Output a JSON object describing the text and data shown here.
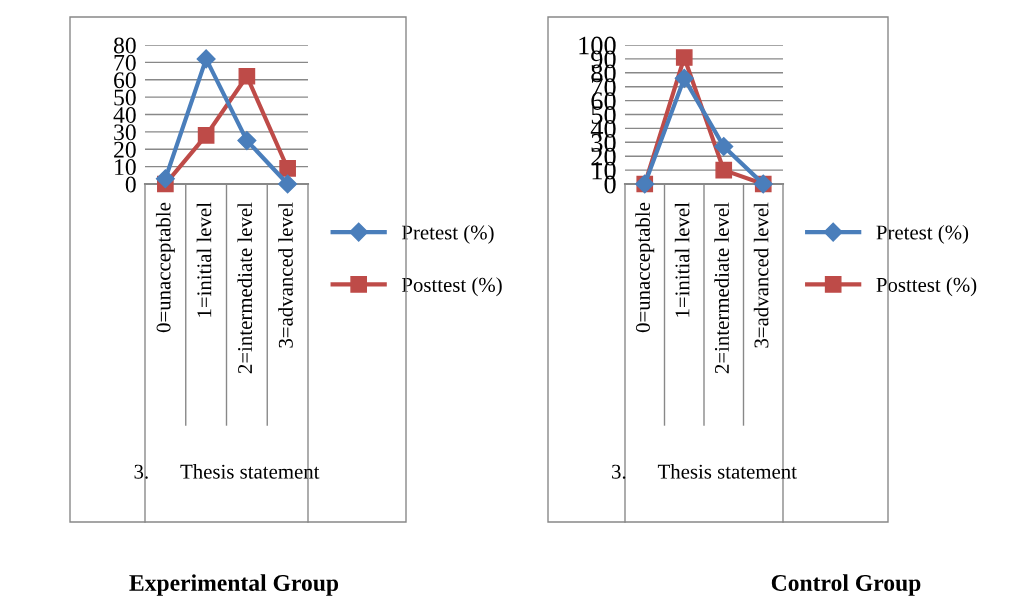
{
  "chart_data": [
    {
      "type": "line",
      "title": "Experimental Group",
      "xlabel": "3.      Thesis statement",
      "categories": [
        "0=unacceptable",
        "1=initial level",
        "2=intermediate level",
        "3=advanced level"
      ],
      "series": [
        {
          "name": "Pretest (%)",
          "color": "#4a7ebb",
          "marker": "diamond",
          "values": [
            3,
            72,
            25,
            0
          ]
        },
        {
          "name": "Posttest (%)",
          "color": "#be4b48",
          "marker": "square",
          "values": [
            0,
            28,
            62,
            9
          ]
        }
      ],
      "ylim": [
        0,
        80
      ],
      "yticks": [
        0,
        10,
        20,
        30,
        40,
        50,
        60,
        70,
        80
      ],
      "grid": "y",
      "legend": "right"
    },
    {
      "type": "line",
      "title": "Control Group",
      "xlabel": "3.      Thesis statement",
      "categories": [
        "0=unacceptable",
        "1=initial level",
        "2=intermediate level",
        "3=advanced level"
      ],
      "series": [
        {
          "name": "Pretest (%)",
          "color": "#4a7ebb",
          "marker": "diamond",
          "values": [
            0,
            76,
            27,
            0
          ]
        },
        {
          "name": "Posttest (%)",
          "color": "#be4b48",
          "marker": "square",
          "values": [
            0,
            91,
            10,
            0
          ]
        }
      ],
      "ylim": [
        0,
        100
      ],
      "yticks": [
        0,
        10,
        20,
        30,
        40,
        50,
        60,
        70,
        80,
        90,
        100
      ],
      "grid": "y",
      "legend": "right"
    }
  ]
}
